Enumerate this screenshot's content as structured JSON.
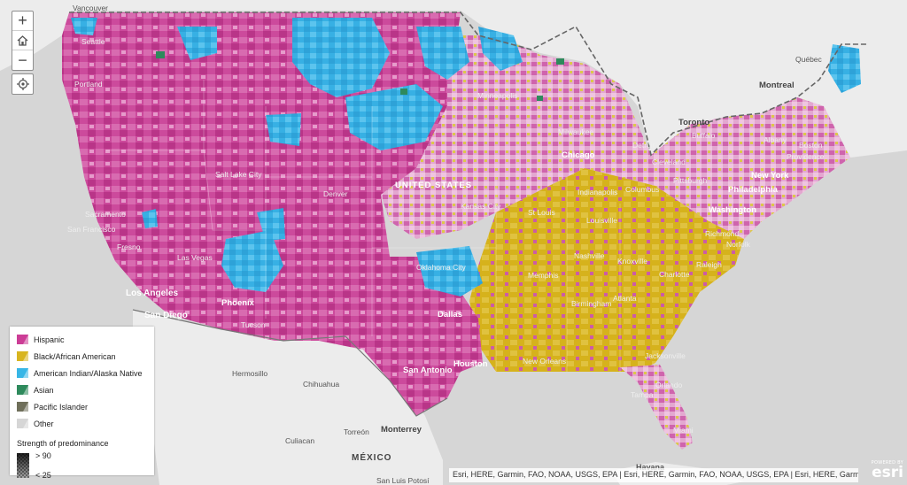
{
  "map": {
    "base_colors": {
      "water": "#d6d6d6",
      "land": "#ececec"
    },
    "place_labels": {
      "vancouver": "Vancouver",
      "seattle": "Seattle",
      "portland": "Portland",
      "salt_lake_city": "Salt Lake City",
      "denver": "Denver",
      "sacramento": "Sacramento",
      "san_francisco": "San Francisco",
      "fresno": "Fresno",
      "las_vegas": "Las Vegas",
      "los_angeles": "Los Angeles",
      "san_diego": "San Diego",
      "phoenix": "Phoenix",
      "tucson": "Tucson",
      "hermosillo": "Hermosillo",
      "chihuahua": "Chihuahua",
      "culiacan": "Culiacan",
      "torreon": "Torreón",
      "monterrey": "Monterrey",
      "mexico": "MÉXICO",
      "san_luis_potosi": "San Luis Potosí",
      "united_states": "UNITED STATES",
      "minneapolis": "Minneapolis",
      "milwaukee": "Milwaukee",
      "chicago": "Chicago",
      "detroit": "Detroit",
      "cleveland": "Cleveland",
      "columbus": "Columbus",
      "indianapolis": "Indianapolis",
      "pittsburgh": "Pittsburgh",
      "st_louis": "St Louis",
      "kansas_city": "Kansas City",
      "louisville": "Louisville",
      "oklahoma_city": "Oklahoma City",
      "dallas": "Dallas",
      "nashville": "Nashville",
      "knoxville": "Knoxville",
      "memphis": "Memphis",
      "birmingham": "Birmingham",
      "atlanta": "Atlanta",
      "charlotte": "Charlotte",
      "raleigh": "Raleigh",
      "norfolk": "Norfolk",
      "richmond": "Richmond",
      "washington": "Washington",
      "philadelphia": "Philadelphia",
      "new_york": "New York",
      "boston": "Boston",
      "providence": "Providence",
      "albany": "Albany",
      "buffalo": "Buffalo",
      "toronto": "Toronto",
      "montreal": "Montreal",
      "quebec": "Québec",
      "houston": "Houston",
      "san_antonio": "San Antonio",
      "new_orleans": "New Orleans",
      "jacksonville": "Jacksonville",
      "orlando": "Orlando",
      "tampa": "Tampa",
      "miami": "Miami",
      "havana": "Havana"
    }
  },
  "controls": {
    "zoom_in": "+",
    "zoom_out": "−",
    "home_icon": "home-icon",
    "locate_icon": "locate-icon"
  },
  "legend": {
    "items": [
      {
        "label": "Hispanic",
        "color": "#cc3d96"
      },
      {
        "label": "Black/African American",
        "color": "#d8b520"
      },
      {
        "label": "American Indian/Alaska Native",
        "color": "#37b6e6"
      },
      {
        "label": "Asian",
        "color": "#2e8a5c"
      },
      {
        "label": "Pacific Islander",
        "color": "#6f6f5a"
      },
      {
        "label": "Other",
        "color": "#d6d6d6"
      }
    ],
    "strength_title": "Strength of predominance",
    "strength_high": "> 90",
    "strength_low": "< 25"
  },
  "attribution": "Esri, HERE, Garmin, FAO, NOAA, USGS, EPA | Esri, HERE, Garmin, FAO, NOAA, USGS, EPA | Esri, HERE, Garmin, FAO, NOAA, USGS, EPA",
  "esri": {
    "powered_by": "POWERED BY",
    "name": "esri"
  }
}
